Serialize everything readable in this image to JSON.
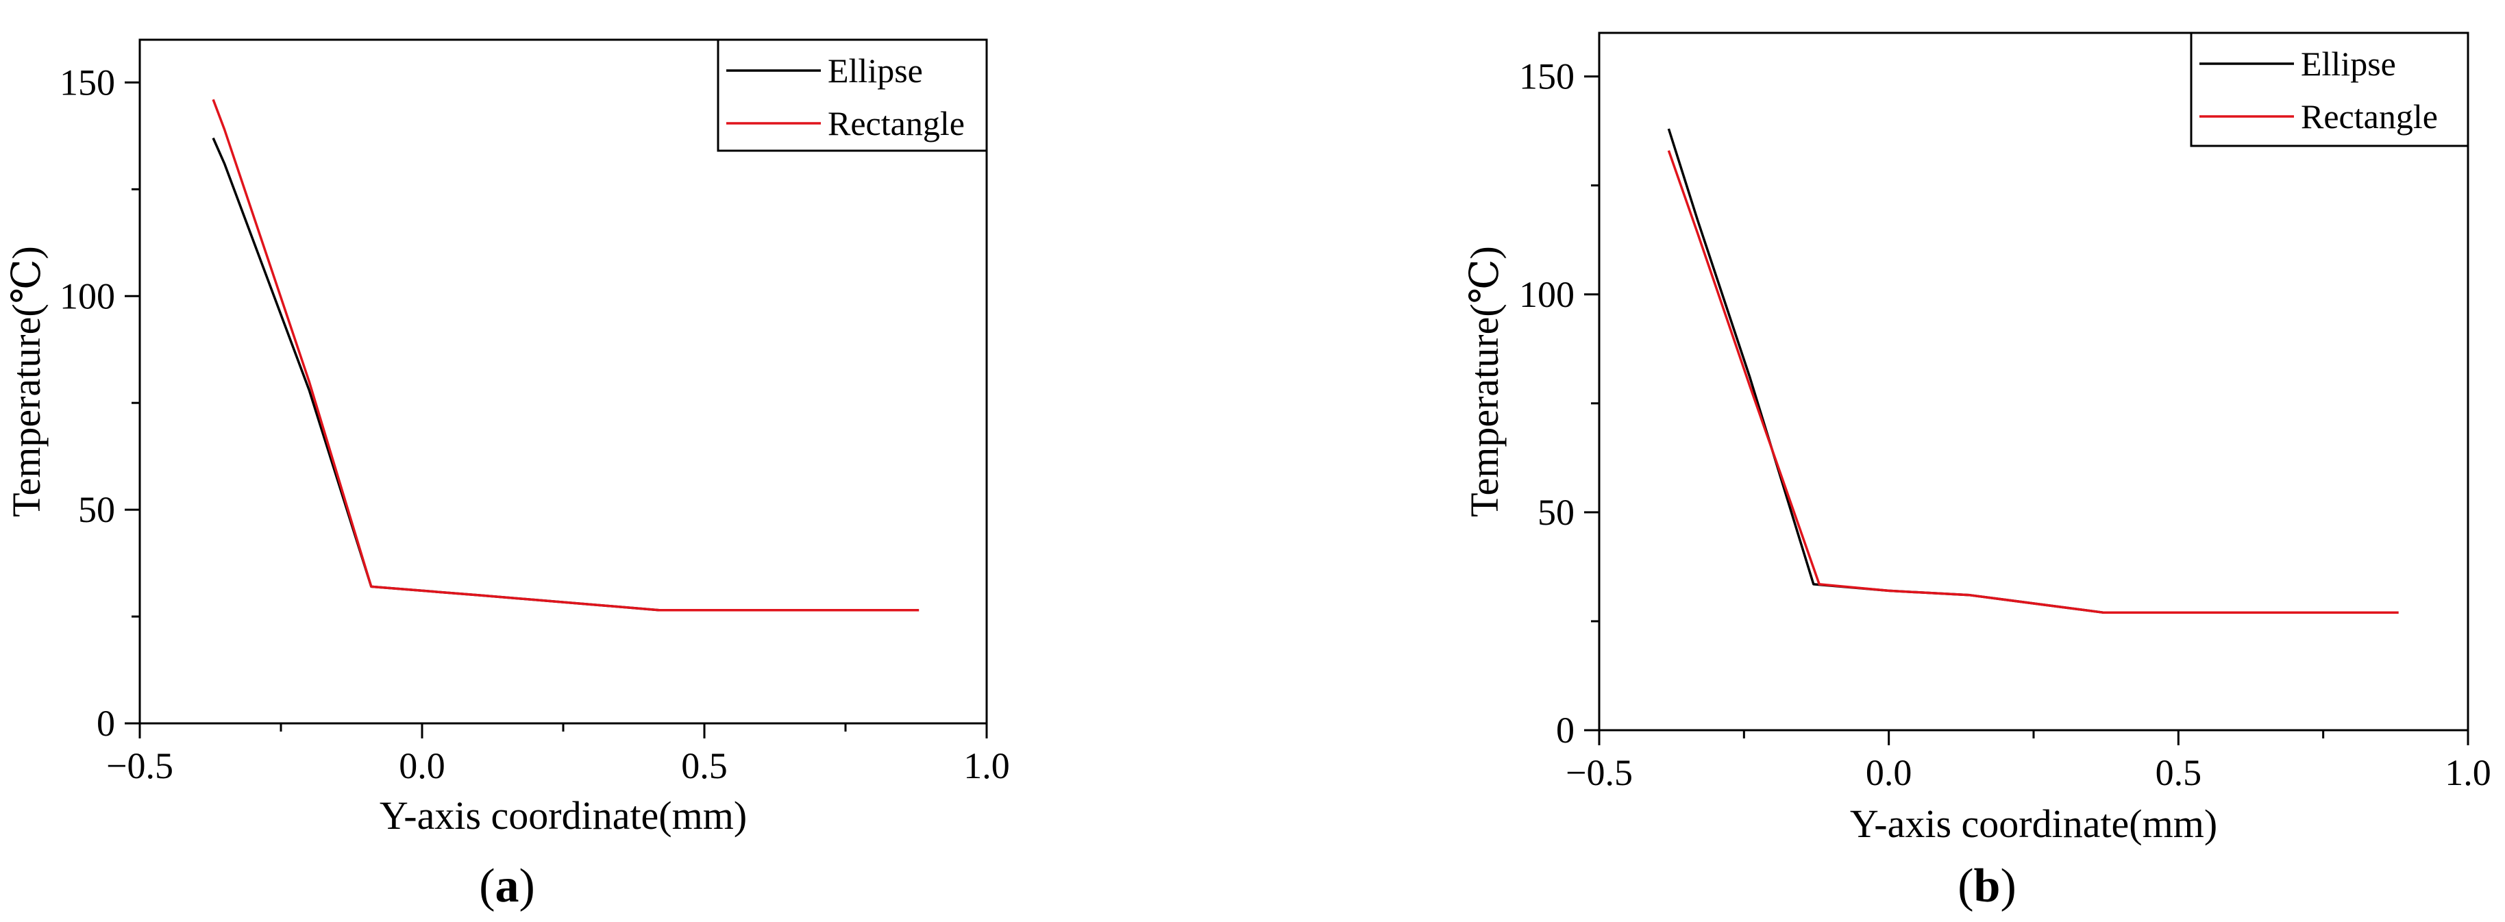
{
  "chart_data": [
    {
      "type": "line",
      "panel_label": "a",
      "xlabel": "Y-axis coordinate(mm)",
      "ylabel": "Temperature(℃)",
      "xlim": [
        -0.5,
        1.0
      ],
      "ylim": [
        0,
        160
      ],
      "x_ticks": [
        "−0.5",
        "0.0",
        "0.5",
        "1.0"
      ],
      "y_ticks": [
        "0",
        "50",
        "100",
        "150"
      ],
      "grid": false,
      "legend": "top-right",
      "series": [
        {
          "name": "Ellipse",
          "color": "#000000",
          "x": [
            -0.37,
            -0.35,
            -0.2,
            -0.09,
            0.1,
            0.42,
            0.88
          ],
          "y": [
            137,
            131,
            78,
            32,
            30,
            26.5,
            26.5
          ]
        },
        {
          "name": "Rectangle",
          "color": "#e0141c",
          "x": [
            -0.37,
            -0.35,
            -0.2,
            -0.09,
            0.1,
            0.42,
            0.88
          ],
          "y": [
            146,
            139,
            80,
            32,
            30,
            26.5,
            26.5
          ]
        }
      ]
    },
    {
      "type": "line",
      "panel_label": "b",
      "xlabel": "Y-axis coordinate(mm)",
      "ylabel": "Temperature(℃)",
      "xlim": [
        -0.5,
        1.0
      ],
      "ylim": [
        0,
        160
      ],
      "x_ticks": [
        "−0.5",
        "0.0",
        "0.5",
        "1.0"
      ],
      "y_ticks": [
        "0",
        "50",
        "100",
        "150"
      ],
      "grid": false,
      "legend": "top-right",
      "series": [
        {
          "name": "Ellipse",
          "color": "#000000",
          "x": [
            -0.38,
            -0.33,
            -0.24,
            -0.13,
            0.0,
            0.14,
            0.37,
            0.88
          ],
          "y": [
            138,
            117,
            81,
            33.5,
            32,
            31,
            27,
            27
          ]
        },
        {
          "name": "Rectangle",
          "color": "#e0141c",
          "x": [
            -0.38,
            -0.33,
            -0.24,
            -0.12,
            0.0,
            0.14,
            0.37,
            0.88
          ],
          "y": [
            133,
            114,
            79,
            33.5,
            32,
            31,
            27,
            27
          ]
        }
      ]
    }
  ]
}
